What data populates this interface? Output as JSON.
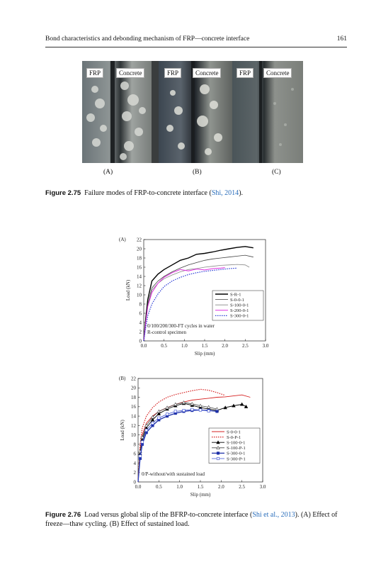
{
  "header": {
    "title": "Bond characteristics and debonding mechanism of FRP—concrete interface",
    "page_number": "161"
  },
  "figure_275": {
    "panels": [
      {
        "letter": "(A)",
        "labels": [
          "FRP",
          "Concrete"
        ]
      },
      {
        "letter": "(B)",
        "labels": [
          "FRP",
          "Concrete"
        ]
      },
      {
        "letter": "(C)",
        "labels": [
          "FRP",
          "Concrete"
        ]
      }
    ],
    "caption_label": "Figure 2.75",
    "caption_text": "Failure modes of FRP-to-concrete interface (",
    "caption_cite": "Shi, 2014",
    "caption_end": ")."
  },
  "figure_276": {
    "caption_label": "Figure 2.76",
    "caption_text": "Load versus global slip of the BFRP-to-concrete interface (",
    "caption_cite": "Shi et al., 2013",
    "caption_end": "). (A) Effect of freeze—thaw cycling. (B) Effect of sustained load."
  },
  "chart_data": [
    {
      "panel": "(A)",
      "type": "line",
      "xlabel": "Slip (mm)",
      "ylabel": "Load (kN)",
      "xlim": [
        0,
        3.0
      ],
      "ylim": [
        0,
        22
      ],
      "xticks": [
        "0.0",
        "0.5",
        "1.0",
        "1.5",
        "2.0",
        "2.5",
        "3.0"
      ],
      "yticks": [
        "0",
        "2",
        "4",
        "6",
        "8",
        "10",
        "12",
        "14",
        "16",
        "18",
        "20",
        "22"
      ],
      "legend": "right",
      "annotations": [
        "0/100/200/300-FT cycles in water",
        "R-control specimen"
      ],
      "series": [
        {
          "name": "S-R-1",
          "color": "#000000",
          "style": "solid",
          "width": 1.4,
          "x": [
            0,
            0.05,
            0.1,
            0.2,
            0.35,
            0.5,
            0.7,
            0.9,
            1.1,
            1.3,
            1.5,
            1.7,
            1.9,
            2.1,
            2.3,
            2.5,
            2.7
          ],
          "y": [
            0,
            5,
            9,
            13,
            14.5,
            15.5,
            16.5,
            17.5,
            18,
            18.8,
            19,
            19.3,
            19.7,
            20,
            20.3,
            20.5,
            20.2
          ]
        },
        {
          "name": "S-0-0-1",
          "color": "#444444",
          "style": "solid",
          "width": 0.8,
          "x": [
            0,
            0.05,
            0.1,
            0.2,
            0.35,
            0.5,
            0.7,
            0.9,
            1.1,
            1.3,
            1.5,
            1.7,
            1.9,
            2.1,
            2.3,
            2.5,
            2.7
          ],
          "y": [
            0,
            4.5,
            8,
            11.5,
            13,
            14,
            15,
            15.8,
            16.5,
            17,
            17.5,
            17.8,
            18,
            18.2,
            18.4,
            18.6,
            18.2
          ]
        },
        {
          "name": "S-100-0-1",
          "color": "#888888",
          "style": "solid",
          "width": 0.8,
          "x": [
            0,
            0.05,
            0.1,
            0.2,
            0.35,
            0.5,
            0.7,
            0.9,
            1.1,
            1.3,
            1.5,
            1.7,
            1.9,
            2.1,
            2.3,
            2.5,
            2.6
          ],
          "y": [
            0,
            4,
            7.5,
            11,
            12.5,
            13.5,
            14.3,
            15,
            15.5,
            15.7,
            16,
            16.2,
            16.4,
            16.5,
            16.6,
            16.5,
            16.0
          ]
        },
        {
          "name": "S-200-0-1",
          "color": "#e030e0",
          "style": "solid",
          "width": 1.0,
          "x": [
            0,
            0.05,
            0.1,
            0.2,
            0.35,
            0.5,
            0.7,
            0.9,
            1.1,
            1.3,
            1.5,
            1.7,
            1.9,
            2.0
          ],
          "y": [
            0,
            4,
            7.5,
            10.5,
            12.5,
            13.8,
            14.8,
            15.5,
            15.2,
            15.6,
            15.4,
            15.7,
            15.8,
            15.9
          ]
        },
        {
          "name": "S-300-0-1",
          "color": "#2a3bd6",
          "style": "dotted",
          "width": 1.2,
          "x": [
            0,
            0.05,
            0.1,
            0.2,
            0.35,
            0.5,
            0.7,
            0.9,
            1.1,
            1.3,
            1.5,
            1.7,
            1.9,
            2.1,
            2.3
          ],
          "y": [
            0,
            3,
            5.5,
            8,
            10.2,
            11.8,
            13,
            13.8,
            14.4,
            14.8,
            15.1,
            15.3,
            15.5,
            15.7,
            15.8
          ]
        }
      ]
    },
    {
      "panel": "(B)",
      "type": "line",
      "xlabel": "Slip (mm)",
      "ylabel": "Load (kN)",
      "xlim": [
        0,
        3.0
      ],
      "ylim": [
        0,
        22
      ],
      "xticks": [
        "0.0",
        "0.5",
        "1.0",
        "1.5",
        "2.0",
        "2.5",
        "3.0"
      ],
      "yticks": [
        "0",
        "2",
        "4",
        "6",
        "8",
        "10",
        "12",
        "14",
        "16",
        "18",
        "20",
        "22"
      ],
      "legend": "right",
      "annotations": [
        "0/P-without/with sustained load"
      ],
      "series": [
        {
          "name": "S-0-0-1",
          "color": "#d62020",
          "style": "solid",
          "width": 0.9,
          "marker": "none",
          "x": [
            0,
            0.05,
            0.1,
            0.2,
            0.35,
            0.5,
            0.7,
            0.9,
            1.1,
            1.3,
            1.5,
            1.7,
            1.9,
            2.1,
            2.3,
            2.5,
            2.7
          ],
          "y": [
            0,
            7,
            10,
            12.5,
            14,
            15,
            15.8,
            16.5,
            17,
            17.4,
            17.6,
            17.8,
            18,
            18.1,
            18.3,
            18.5,
            18.0
          ]
        },
        {
          "name": "S-0-P-1",
          "color": "#d62020",
          "style": "dotted",
          "width": 1.2,
          "marker": "none",
          "x": [
            0,
            0.05,
            0.1,
            0.2,
            0.35,
            0.5,
            0.7,
            0.9,
            1.1,
            1.3,
            1.5,
            1.7,
            1.9,
            2.1
          ],
          "y": [
            0,
            8,
            11.5,
            14,
            15.8,
            17,
            18,
            18.6,
            19,
            19.4,
            19.7,
            19.5,
            19,
            18.4
          ]
        },
        {
          "name": "S-100-0-1",
          "color": "#000000",
          "style": "solid",
          "width": 0.9,
          "marker": "triangle-filled",
          "x": [
            0,
            0.05,
            0.1,
            0.2,
            0.35,
            0.5,
            0.7,
            0.9,
            1.1,
            1.3,
            1.5,
            1.7,
            1.9,
            2.1,
            2.3,
            2.5,
            2.6
          ],
          "y": [
            0,
            6,
            9,
            11.5,
            13.2,
            14.5,
            15.5,
            16.2,
            16.7,
            16.3,
            15.8,
            15.5,
            15.2,
            15.8,
            16.2,
            16.5,
            16.0
          ]
        },
        {
          "name": "S-100-P-1",
          "color": "#444444",
          "style": "solid",
          "width": 0.8,
          "marker": "triangle-open",
          "x": [
            0,
            0.05,
            0.1,
            0.2,
            0.35,
            0.5,
            0.7,
            0.9,
            1.1,
            1.3,
            1.5,
            1.7,
            1.9
          ],
          "y": [
            0,
            6.5,
            9.5,
            12,
            13.8,
            15,
            15.8,
            16.5,
            16.9,
            16.6,
            16.2,
            15.9,
            15.5
          ]
        },
        {
          "name": "S-300-0-1",
          "color": "#1c2fa8",
          "style": "solid",
          "width": 1.3,
          "marker": "square-filled",
          "x": [
            0,
            0.05,
            0.1,
            0.2,
            0.35,
            0.5,
            0.7,
            0.9,
            1.1,
            1.3,
            1.5,
            1.7,
            1.9
          ],
          "y": [
            0,
            5,
            8,
            10.5,
            12,
            13.2,
            14,
            14.6,
            15,
            15.2,
            15.3,
            15.2,
            15.0
          ]
        },
        {
          "name": "S-300-P-1",
          "color": "#3a4fd0",
          "style": "solid",
          "width": 0.8,
          "marker": "square-open",
          "x": [
            0,
            0.05,
            0.1,
            0.2,
            0.35,
            0.5,
            0.7,
            0.9,
            1.1,
            1.3,
            1.5,
            1.7
          ],
          "y": [
            0,
            5.5,
            8.5,
            11,
            12.5,
            13.6,
            14.4,
            15,
            15.2,
            15.4,
            15.3,
            15.1
          ]
        }
      ]
    }
  ]
}
